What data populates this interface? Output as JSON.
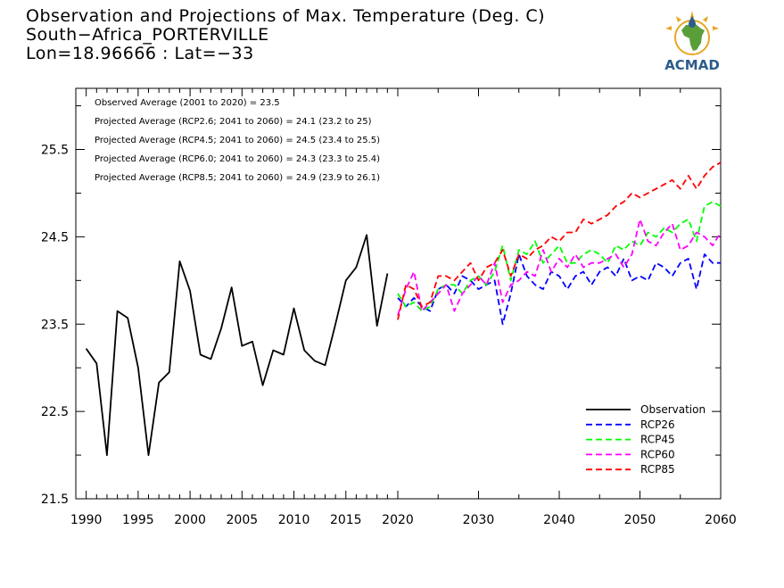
{
  "title": {
    "line1": "Observation and Projections of Max. Temperature (Deg. C)",
    "line2": "South−Africa_PORTERVILLE",
    "line3": "Lon=18.96666 : Lat=−33"
  },
  "logo": {
    "text": "ACMAD",
    "color": "#2c5c8a",
    "accent": "#e8a623",
    "land": "#5a9e3a"
  },
  "annotations": [
    "Observed Average (2001 to 2020) = 23.5",
    "Projected Average (RCP2.6; 2041 to 2060) = 24.1 (23.2 to 25)",
    "Projected Average (RCP4.5; 2041 to 2060) = 24.5 (23.4 to 25.5)",
    "Projected Average (RCP6.0; 2041 to 2060) = 24.3 (23.3 to 25.4)",
    "Projected Average (RCP8.5; 2041 to 2060) = 24.9 (23.9 to 26.1)"
  ],
  "chart_data": {
    "type": "line",
    "ylim": [
      21.5,
      26.2
    ],
    "yticks": [
      21.5,
      22.5,
      23.5,
      24.5,
      25.5
    ],
    "ytick_labels": [
      "21.5",
      "22.5",
      "23.5",
      "24.5",
      "25.5"
    ],
    "xticks_left": [
      1990,
      1995,
      2000,
      2005,
      2010,
      2015,
      2020
    ],
    "xticks_right": [
      2030,
      2040,
      2050,
      2060
    ],
    "xtick_labels_left": [
      "1990",
      "1995",
      "2000",
      "2005",
      "2010",
      "2015",
      "2020"
    ],
    "xtick_labels_right": [
      "2030",
      "2040",
      "2050",
      "2060"
    ],
    "grid": false,
    "legend_position": "bottom-right",
    "legend": [
      "Observation",
      "RCP26",
      "RCP45",
      "RCP60",
      "RCP85"
    ],
    "series": [
      {
        "name": "Observation",
        "color": "#000000",
        "dashed": false,
        "x": [
          1990,
          1991,
          1992,
          1993,
          1994,
          1995,
          1996,
          1997,
          1998,
          1999,
          2000,
          2001,
          2002,
          2003,
          2004,
          2005,
          2006,
          2007,
          2008,
          2009,
          2010,
          2011,
          2012,
          2013,
          2014,
          2015,
          2016,
          2017,
          2018,
          2019
        ],
        "y": [
          23.22,
          23.05,
          22.0,
          23.65,
          23.57,
          23.0,
          22.0,
          22.83,
          22.95,
          24.22,
          23.88,
          23.15,
          23.1,
          23.45,
          23.92,
          23.25,
          23.3,
          22.8,
          23.2,
          23.15,
          23.68,
          23.2,
          23.08,
          23.03,
          23.5,
          24.0,
          24.15,
          24.52,
          23.48,
          24.08
        ]
      },
      {
        "name": "RCP26",
        "color": "#0000ff",
        "dashed": true,
        "x": [
          2020,
          2021,
          2022,
          2023,
          2024,
          2025,
          2026,
          2027,
          2028,
          2029,
          2030,
          2031,
          2032,
          2033,
          2034,
          2035,
          2036,
          2037,
          2038,
          2039,
          2040,
          2041,
          2042,
          2043,
          2044,
          2045,
          2046,
          2047,
          2048,
          2049,
          2050,
          2051,
          2052,
          2053,
          2054,
          2055,
          2056,
          2057,
          2058,
          2059,
          2060
        ],
        "y": [
          23.8,
          23.7,
          23.8,
          23.7,
          23.65,
          23.9,
          23.95,
          23.85,
          24.05,
          24.0,
          23.9,
          23.95,
          24.0,
          23.5,
          23.85,
          24.3,
          24.05,
          23.95,
          23.9,
          24.1,
          24.05,
          23.9,
          24.05,
          24.1,
          23.95,
          24.1,
          24.15,
          24.05,
          24.25,
          24.0,
          24.05,
          24.0,
          24.2,
          24.15,
          24.05,
          24.2,
          24.25,
          23.9,
          24.3,
          24.2,
          24.2
        ]
      },
      {
        "name": "RCP45",
        "color": "#00ff00",
        "dashed": true,
        "x": [
          2020,
          2021,
          2022,
          2023,
          2024,
          2025,
          2026,
          2027,
          2028,
          2029,
          2030,
          2031,
          2032,
          2033,
          2034,
          2035,
          2036,
          2037,
          2038,
          2039,
          2040,
          2041,
          2042,
          2043,
          2044,
          2045,
          2046,
          2047,
          2048,
          2049,
          2050,
          2051,
          2052,
          2053,
          2054,
          2055,
          2056,
          2057,
          2058,
          2059,
          2060
        ],
        "y": [
          23.85,
          23.7,
          23.75,
          23.65,
          23.7,
          23.9,
          23.95,
          23.95,
          23.85,
          24.0,
          24.05,
          23.95,
          24.1,
          24.4,
          24.0,
          24.35,
          24.3,
          24.45,
          24.2,
          24.3,
          24.4,
          24.2,
          24.2,
          24.3,
          24.35,
          24.3,
          24.2,
          24.4,
          24.35,
          24.45,
          24.4,
          24.55,
          24.5,
          24.6,
          24.55,
          24.65,
          24.7,
          24.45,
          24.85,
          24.9,
          24.85
        ]
      },
      {
        "name": "RCP60",
        "color": "#ff00ff",
        "dashed": true,
        "x": [
          2020,
          2021,
          2022,
          2023,
          2024,
          2025,
          2026,
          2027,
          2028,
          2029,
          2030,
          2031,
          2032,
          2033,
          2034,
          2035,
          2036,
          2037,
          2038,
          2039,
          2040,
          2041,
          2042,
          2043,
          2044,
          2045,
          2046,
          2047,
          2048,
          2049,
          2050,
          2051,
          2052,
          2053,
          2054,
          2055,
          2056,
          2057,
          2058,
          2059,
          2060
        ],
        "y": [
          23.6,
          23.9,
          24.1,
          23.65,
          23.75,
          23.85,
          23.95,
          23.65,
          23.85,
          23.95,
          24.05,
          23.95,
          24.2,
          23.75,
          23.95,
          24.0,
          24.1,
          24.05,
          24.35,
          24.1,
          24.25,
          24.15,
          24.3,
          24.15,
          24.2,
          24.2,
          24.25,
          24.3,
          24.15,
          24.3,
          24.7,
          24.45,
          24.4,
          24.55,
          24.65,
          24.35,
          24.4,
          24.55,
          24.5,
          24.4,
          24.55
        ]
      },
      {
        "name": "RCP85",
        "color": "#ff0000",
        "dashed": true,
        "x": [
          2020,
          2021,
          2022,
          2023,
          2024,
          2025,
          2026,
          2027,
          2028,
          2029,
          2030,
          2031,
          2032,
          2033,
          2034,
          2035,
          2036,
          2037,
          2038,
          2039,
          2040,
          2041,
          2042,
          2043,
          2044,
          2045,
          2046,
          2047,
          2048,
          2049,
          2050,
          2051,
          2052,
          2053,
          2054,
          2055,
          2056,
          2057,
          2058,
          2059,
          2060
        ],
        "y": [
          23.55,
          23.95,
          23.9,
          23.7,
          23.75,
          24.05,
          24.05,
          24.0,
          24.1,
          24.2,
          24.0,
          24.15,
          24.2,
          24.35,
          24.05,
          24.3,
          24.25,
          24.35,
          24.4,
          24.5,
          24.45,
          24.55,
          24.55,
          24.7,
          24.65,
          24.7,
          24.75,
          24.85,
          24.9,
          25.0,
          24.95,
          25.0,
          25.05,
          25.1,
          25.15,
          25.05,
          25.2,
          25.05,
          25.2,
          25.3,
          25.35
        ]
      }
    ]
  }
}
